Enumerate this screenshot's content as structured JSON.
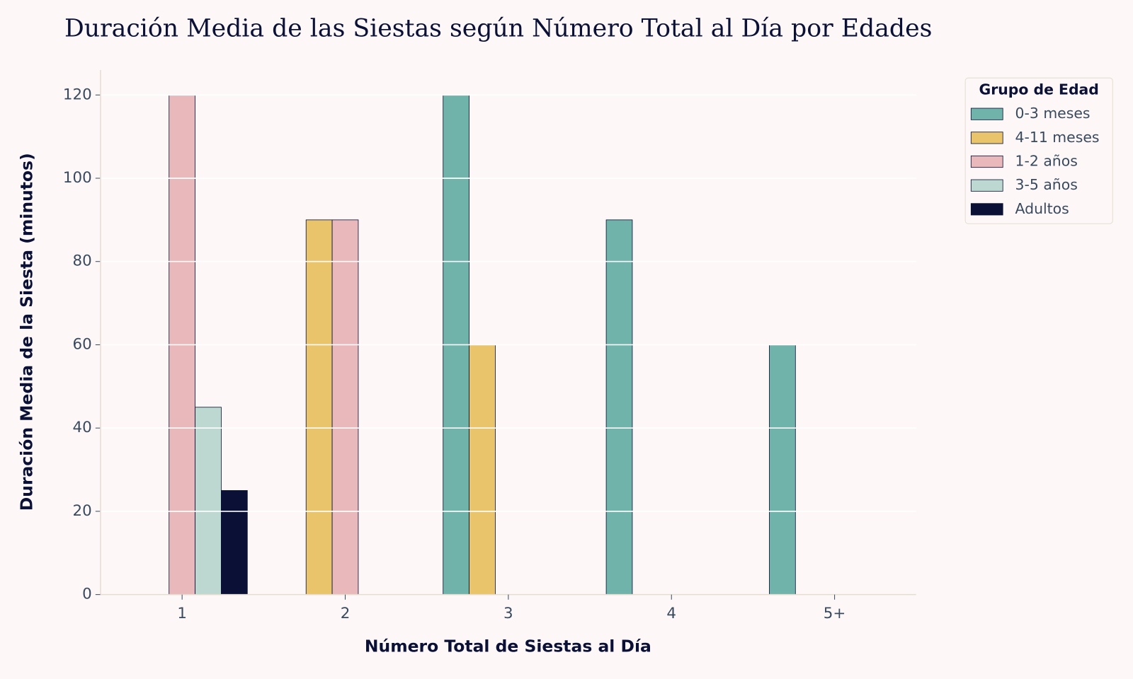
{
  "chart_data": {
    "type": "bar",
    "title": "Duración Media de las Siestas según Número Total al Día por Edades",
    "x_label": "Número Total de Siestas al Día",
    "y_label": "Duración Media de la Siesta (minutos)",
    "categories": [
      "1",
      "2",
      "3",
      "4",
      "5+"
    ],
    "series": [
      {
        "name": "0-3 meses",
        "color": "#6fb3ab",
        "values": [
          null,
          null,
          120,
          90,
          60
        ]
      },
      {
        "name": "4-11 meses",
        "color": "#e9c46a",
        "values": [
          null,
          90,
          60,
          null,
          null
        ]
      },
      {
        "name": "1-2 años",
        "color": "#e8b8bb",
        "values": [
          120,
          90,
          null,
          null,
          null
        ]
      },
      {
        "name": "3-5 años",
        "color": "#bdd8d1",
        "values": [
          45,
          null,
          null,
          null,
          null
        ]
      },
      {
        "name": "Adultos",
        "color": "#0b1136",
        "values": [
          25,
          null,
          null,
          null,
          null
        ]
      }
    ],
    "ylim": [
      0,
      126
    ],
    "yticks": [
      0,
      20,
      40,
      60,
      80,
      100,
      120
    ],
    "grid": true,
    "legend_title": "Grupo de Edad",
    "legend_position": "upper right"
  }
}
